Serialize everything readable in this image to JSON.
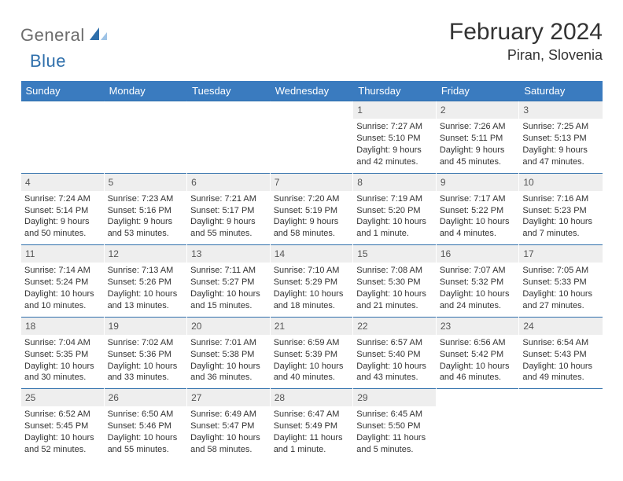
{
  "logo": {
    "part1": "General",
    "part2": "Blue"
  },
  "title": "February 2024",
  "location": "Piran, Slovenia",
  "colors": {
    "header_band": "#3a7bbf",
    "header_text": "#ffffff",
    "rule": "#2f6fab",
    "daynum_bg": "#eeeeee",
    "body_text": "#333333",
    "logo_gray": "#6c6c6c",
    "logo_blue": "#2f6fab"
  },
  "weekdays": [
    "Sunday",
    "Monday",
    "Tuesday",
    "Wednesday",
    "Thursday",
    "Friday",
    "Saturday"
  ],
  "weeks": [
    [
      {
        "n": "",
        "sr": "",
        "ss": "",
        "dl": ""
      },
      {
        "n": "",
        "sr": "",
        "ss": "",
        "dl": ""
      },
      {
        "n": "",
        "sr": "",
        "ss": "",
        "dl": ""
      },
      {
        "n": "",
        "sr": "",
        "ss": "",
        "dl": ""
      },
      {
        "n": "1",
        "sr": "Sunrise: 7:27 AM",
        "ss": "Sunset: 5:10 PM",
        "dl": "Daylight: 9 hours and 42 minutes."
      },
      {
        "n": "2",
        "sr": "Sunrise: 7:26 AM",
        "ss": "Sunset: 5:11 PM",
        "dl": "Daylight: 9 hours and 45 minutes."
      },
      {
        "n": "3",
        "sr": "Sunrise: 7:25 AM",
        "ss": "Sunset: 5:13 PM",
        "dl": "Daylight: 9 hours and 47 minutes."
      }
    ],
    [
      {
        "n": "4",
        "sr": "Sunrise: 7:24 AM",
        "ss": "Sunset: 5:14 PM",
        "dl": "Daylight: 9 hours and 50 minutes."
      },
      {
        "n": "5",
        "sr": "Sunrise: 7:23 AM",
        "ss": "Sunset: 5:16 PM",
        "dl": "Daylight: 9 hours and 53 minutes."
      },
      {
        "n": "6",
        "sr": "Sunrise: 7:21 AM",
        "ss": "Sunset: 5:17 PM",
        "dl": "Daylight: 9 hours and 55 minutes."
      },
      {
        "n": "7",
        "sr": "Sunrise: 7:20 AM",
        "ss": "Sunset: 5:19 PM",
        "dl": "Daylight: 9 hours and 58 minutes."
      },
      {
        "n": "8",
        "sr": "Sunrise: 7:19 AM",
        "ss": "Sunset: 5:20 PM",
        "dl": "Daylight: 10 hours and 1 minute."
      },
      {
        "n": "9",
        "sr": "Sunrise: 7:17 AM",
        "ss": "Sunset: 5:22 PM",
        "dl": "Daylight: 10 hours and 4 minutes."
      },
      {
        "n": "10",
        "sr": "Sunrise: 7:16 AM",
        "ss": "Sunset: 5:23 PM",
        "dl": "Daylight: 10 hours and 7 minutes."
      }
    ],
    [
      {
        "n": "11",
        "sr": "Sunrise: 7:14 AM",
        "ss": "Sunset: 5:24 PM",
        "dl": "Daylight: 10 hours and 10 minutes."
      },
      {
        "n": "12",
        "sr": "Sunrise: 7:13 AM",
        "ss": "Sunset: 5:26 PM",
        "dl": "Daylight: 10 hours and 13 minutes."
      },
      {
        "n": "13",
        "sr": "Sunrise: 7:11 AM",
        "ss": "Sunset: 5:27 PM",
        "dl": "Daylight: 10 hours and 15 minutes."
      },
      {
        "n": "14",
        "sr": "Sunrise: 7:10 AM",
        "ss": "Sunset: 5:29 PM",
        "dl": "Daylight: 10 hours and 18 minutes."
      },
      {
        "n": "15",
        "sr": "Sunrise: 7:08 AM",
        "ss": "Sunset: 5:30 PM",
        "dl": "Daylight: 10 hours and 21 minutes."
      },
      {
        "n": "16",
        "sr": "Sunrise: 7:07 AM",
        "ss": "Sunset: 5:32 PM",
        "dl": "Daylight: 10 hours and 24 minutes."
      },
      {
        "n": "17",
        "sr": "Sunrise: 7:05 AM",
        "ss": "Sunset: 5:33 PM",
        "dl": "Daylight: 10 hours and 27 minutes."
      }
    ],
    [
      {
        "n": "18",
        "sr": "Sunrise: 7:04 AM",
        "ss": "Sunset: 5:35 PM",
        "dl": "Daylight: 10 hours and 30 minutes."
      },
      {
        "n": "19",
        "sr": "Sunrise: 7:02 AM",
        "ss": "Sunset: 5:36 PM",
        "dl": "Daylight: 10 hours and 33 minutes."
      },
      {
        "n": "20",
        "sr": "Sunrise: 7:01 AM",
        "ss": "Sunset: 5:38 PM",
        "dl": "Daylight: 10 hours and 36 minutes."
      },
      {
        "n": "21",
        "sr": "Sunrise: 6:59 AM",
        "ss": "Sunset: 5:39 PM",
        "dl": "Daylight: 10 hours and 40 minutes."
      },
      {
        "n": "22",
        "sr": "Sunrise: 6:57 AM",
        "ss": "Sunset: 5:40 PM",
        "dl": "Daylight: 10 hours and 43 minutes."
      },
      {
        "n": "23",
        "sr": "Sunrise: 6:56 AM",
        "ss": "Sunset: 5:42 PM",
        "dl": "Daylight: 10 hours and 46 minutes."
      },
      {
        "n": "24",
        "sr": "Sunrise: 6:54 AM",
        "ss": "Sunset: 5:43 PM",
        "dl": "Daylight: 10 hours and 49 minutes."
      }
    ],
    [
      {
        "n": "25",
        "sr": "Sunrise: 6:52 AM",
        "ss": "Sunset: 5:45 PM",
        "dl": "Daylight: 10 hours and 52 minutes."
      },
      {
        "n": "26",
        "sr": "Sunrise: 6:50 AM",
        "ss": "Sunset: 5:46 PM",
        "dl": "Daylight: 10 hours and 55 minutes."
      },
      {
        "n": "27",
        "sr": "Sunrise: 6:49 AM",
        "ss": "Sunset: 5:47 PM",
        "dl": "Daylight: 10 hours and 58 minutes."
      },
      {
        "n": "28",
        "sr": "Sunrise: 6:47 AM",
        "ss": "Sunset: 5:49 PM",
        "dl": "Daylight: 11 hours and 1 minute."
      },
      {
        "n": "29",
        "sr": "Sunrise: 6:45 AM",
        "ss": "Sunset: 5:50 PM",
        "dl": "Daylight: 11 hours and 5 minutes."
      },
      {
        "n": "",
        "sr": "",
        "ss": "",
        "dl": ""
      },
      {
        "n": "",
        "sr": "",
        "ss": "",
        "dl": ""
      }
    ]
  ]
}
